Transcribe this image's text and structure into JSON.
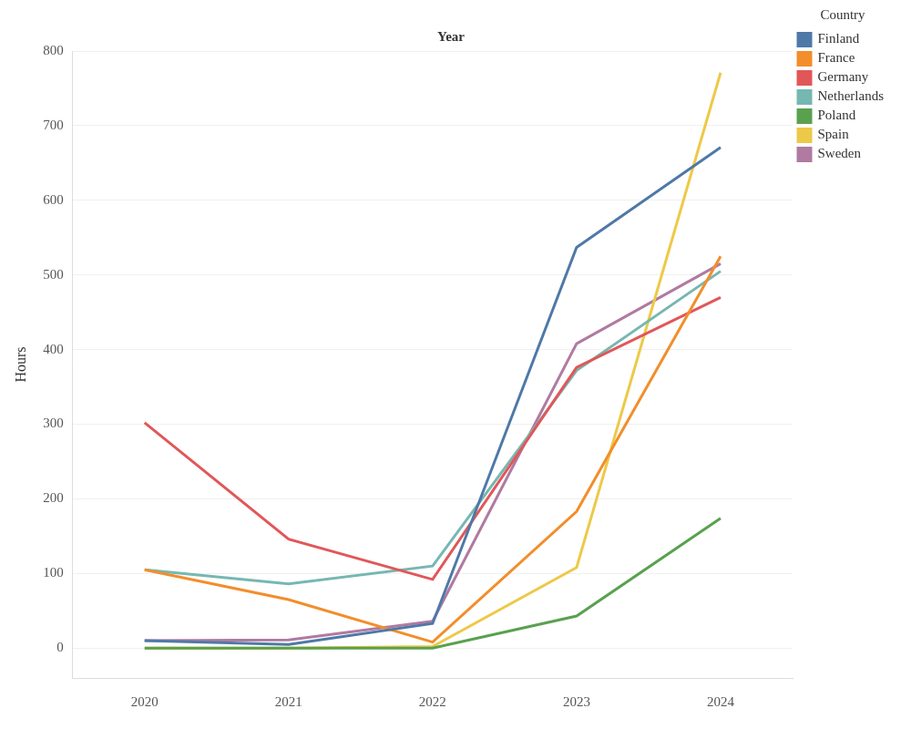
{
  "chart_data": {
    "type": "line",
    "title": "Year",
    "y_label": "Hours",
    "legend_title": "Country",
    "categories": [
      "2020",
      "2021",
      "2022",
      "2023",
      "2024"
    ],
    "series": [
      {
        "name": "Finland",
        "color": "#4e79a7",
        "values": [
          10,
          5,
          33,
          537,
          671
        ]
      },
      {
        "name": "France",
        "color": "#f28e2b",
        "values": [
          105,
          65,
          8,
          183,
          525
        ]
      },
      {
        "name": "Germany",
        "color": "#e15759",
        "values": [
          302,
          146,
          92,
          376,
          470
        ]
      },
      {
        "name": "Netherlands",
        "color": "#76b7b2",
        "values": [
          105,
          86,
          110,
          372,
          505
        ]
      },
      {
        "name": "Poland",
        "color": "#59a14f",
        "values": [
          0,
          0,
          0,
          43,
          174
        ]
      },
      {
        "name": "Spain",
        "color": "#edc948",
        "values": [
          0,
          0,
          2,
          108,
          771
        ]
      },
      {
        "name": "Sweden",
        "color": "#b07aa1",
        "values": [
          10,
          11,
          36,
          408,
          515
        ]
      }
    ],
    "ylim": [
      -40,
      800
    ],
    "yticks": [
      0,
      100,
      200,
      300,
      400,
      500,
      600,
      700,
      800
    ],
    "grid": true,
    "legend": "top-right"
  }
}
